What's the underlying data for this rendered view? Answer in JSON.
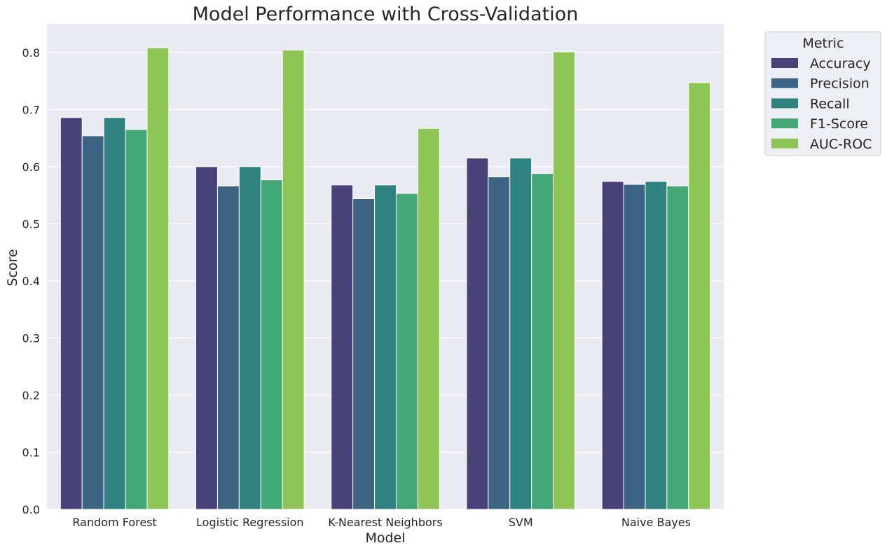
{
  "chart_data": {
    "type": "bar",
    "title": "Model Performance with Cross-Validation",
    "xlabel": "Model",
    "ylabel": "Score",
    "ylim": [
      0,
      0.85
    ],
    "yticks": [
      0.0,
      0.1,
      0.2,
      0.3,
      0.4,
      0.5,
      0.6,
      0.7,
      0.8
    ],
    "ytick_labels": [
      "0.0",
      "0.1",
      "0.2",
      "0.3",
      "0.4",
      "0.5",
      "0.6",
      "0.7",
      "0.8"
    ],
    "grid": true,
    "legend": {
      "title": "Metric",
      "placement": "outside-top-right"
    },
    "categories": [
      "Random Forest",
      "Logistic Regression",
      "K-Nearest Neighbors",
      "SVM",
      "Naive Bayes"
    ],
    "series": [
      {
        "name": "Accuracy",
        "color": "#48417a",
        "values": [
          0.686,
          0.6,
          0.568,
          0.615,
          0.574
        ]
      },
      {
        "name": "Precision",
        "color": "#3d6482",
        "values": [
          0.654,
          0.566,
          0.544,
          0.582,
          0.569
        ]
      },
      {
        "name": "Recall",
        "color": "#2e8280",
        "values": [
          0.686,
          0.6,
          0.568,
          0.615,
          0.574
        ]
      },
      {
        "name": "F1-Score",
        "color": "#44a776",
        "values": [
          0.665,
          0.577,
          0.553,
          0.588,
          0.566
        ]
      },
      {
        "name": "AUC-ROC",
        "color": "#8ec556",
        "values": [
          0.808,
          0.804,
          0.667,
          0.801,
          0.747
        ]
      }
    ]
  }
}
